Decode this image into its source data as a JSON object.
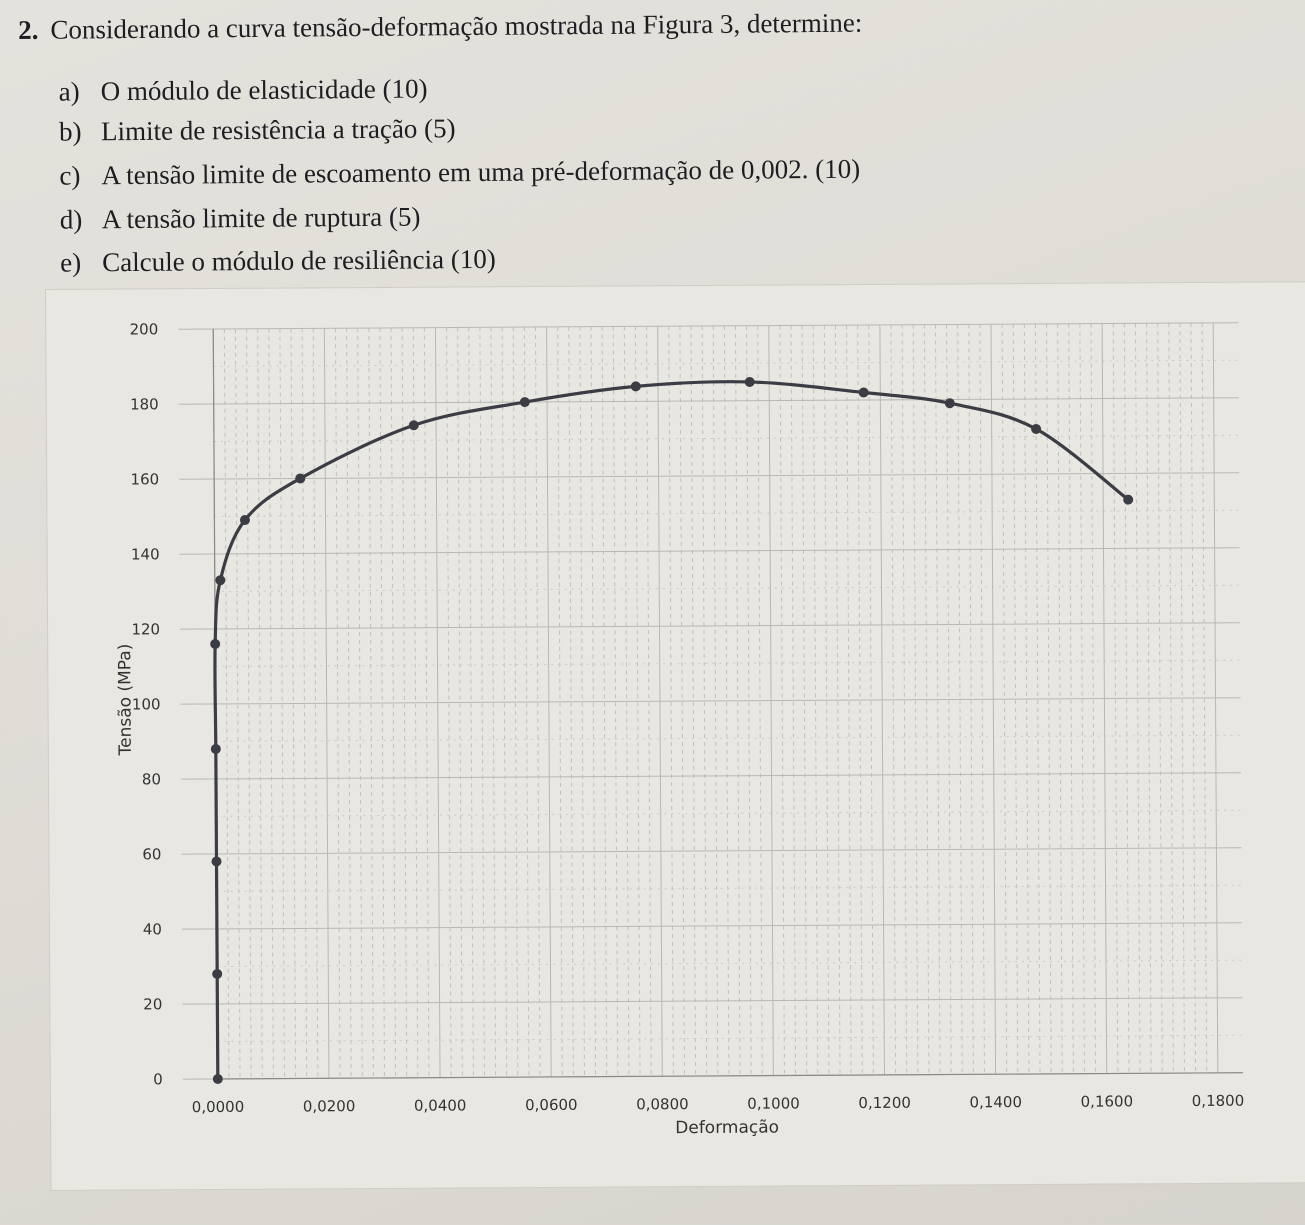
{
  "question": {
    "number": "2.",
    "text": "Considerando a curva tensão-deformação mostrada na Figura 3, determine:",
    "items": [
      {
        "letter": "a)",
        "text": "O módulo de elasticidade (10)"
      },
      {
        "letter": "b)",
        "text": "Limite de resistência a tração (5)"
      },
      {
        "letter": "c)",
        "text": "A tensão limite de escoamento em uma pré-deformação de 0,002. (10)"
      },
      {
        "letter": "d)",
        "text": "A tensão limite de ruptura (5)"
      },
      {
        "letter": "e)",
        "text": "Calcule o módulo de resiliência (10)"
      }
    ]
  },
  "chart_data": {
    "type": "line",
    "title": "",
    "xlabel": "Deformação",
    "ylabel": "Tensão (MPa)",
    "xlim": [
      0,
      0.18
    ],
    "ylim": [
      0,
      200
    ],
    "x_ticks": [
      "0,0000",
      "0,0200",
      "0,0400",
      "0,0600",
      "0,0800",
      "0,1000",
      "0,1200",
      "0,1400",
      "0,1600",
      "0,1800"
    ],
    "y_ticks": [
      "0",
      "20",
      "40",
      "60",
      "80",
      "100",
      "120",
      "140",
      "160",
      "180",
      "200"
    ],
    "grid": true,
    "line_color": "#3c3c44",
    "series": [
      {
        "x": [
          0,
          0,
          0,
          0,
          0,
          0.001,
          0.0055,
          0.0155,
          0.036,
          0.056,
          0.076,
          0.0965,
          0.117,
          0.1325,
          0.148,
          0.1645
        ],
        "y": [
          0,
          28,
          58,
          88,
          116,
          133,
          149,
          160,
          174,
          180,
          184,
          185,
          182,
          179,
          172,
          153
        ]
      }
    ]
  }
}
